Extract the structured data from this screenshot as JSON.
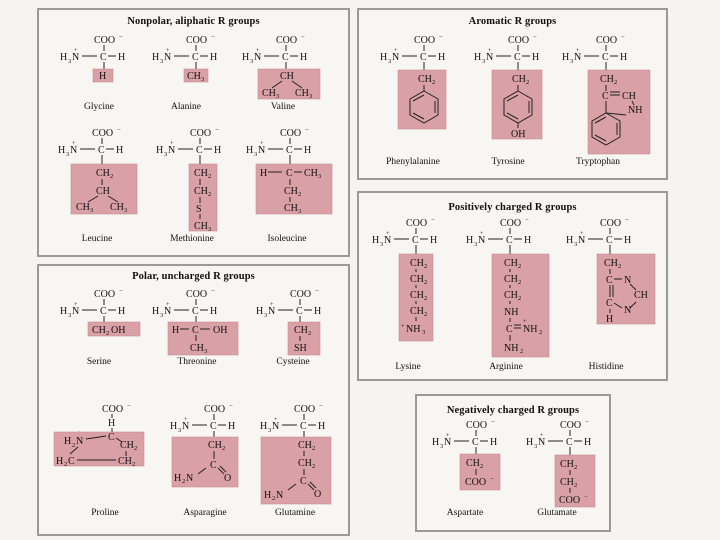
{
  "groups": {
    "nonpolar": "Nonpolar, aliphatic R groups",
    "aromatic": "Aromatic R groups",
    "positive": "Positively charged R groups",
    "polar": "Polar, uncharged R groups",
    "negative": "Negatively charged R groups"
  },
  "amino_acids": {
    "glycine": "Glycine",
    "alanine": "Alanine",
    "valine": "Valine",
    "leucine": "Leucine",
    "methionine": "Methionine",
    "isoleucine": "Isoleucine",
    "phenylalanine": "Phenylalanine",
    "tyrosine": "Tyrosine",
    "tryptophan": "Tryptophan",
    "lysine": "Lysine",
    "arginine": "Arginine",
    "histidine": "Histidine",
    "serine": "Serine",
    "threonine": "Threonine",
    "cysteine": "Cysteine",
    "proline": "Proline",
    "asparagine": "Asparagine",
    "glutamine": "Glutamine",
    "aspartate": "Aspartate",
    "glutamate": "Glutamate"
  },
  "colors": {
    "r_group_highlight": "#d9a0a6",
    "panel_border": "#9a9a9a",
    "background": "#f5f4f2"
  }
}
